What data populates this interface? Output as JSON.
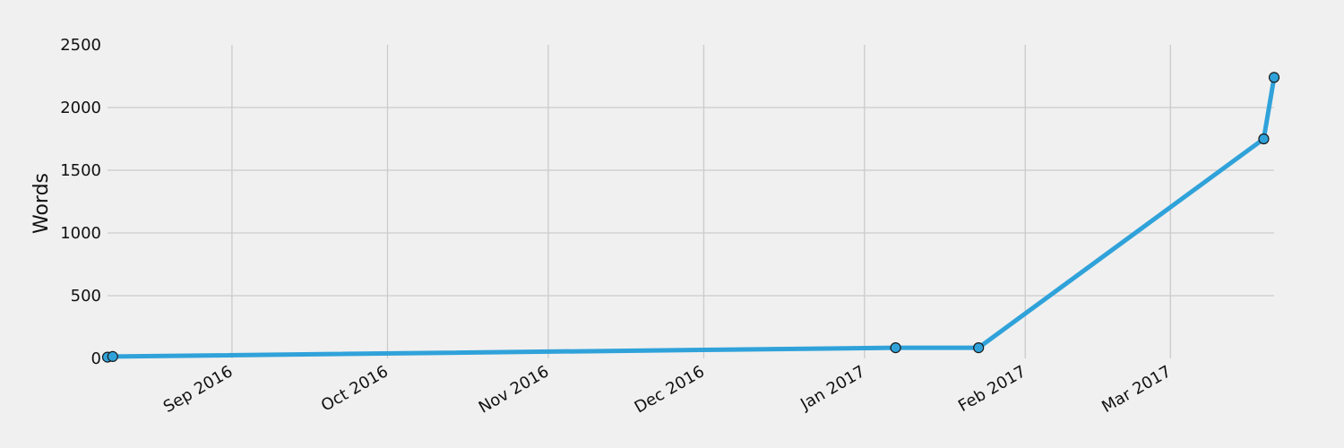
{
  "chart_data": {
    "type": "line",
    "title": "",
    "xlabel": "",
    "ylabel": "Words",
    "grid": true,
    "legend": "none",
    "xlim": [
      "2016-08-08",
      "2017-03-21"
    ],
    "ylim": [
      0,
      2500
    ],
    "yticks": [
      0,
      500,
      1000,
      1500,
      2000,
      2500
    ],
    "xticks": [
      {
        "date": "2016-09-01",
        "label": "Sep 2016"
      },
      {
        "date": "2016-10-01",
        "label": "Oct 2016"
      },
      {
        "date": "2016-11-01",
        "label": "Nov 2016"
      },
      {
        "date": "2016-12-01",
        "label": "Dec 2016"
      },
      {
        "date": "2017-01-01",
        "label": "Jan 2017"
      },
      {
        "date": "2017-02-01",
        "label": "Feb 2017"
      },
      {
        "date": "2017-03-01",
        "label": "Mar 2017"
      }
    ],
    "series": [
      {
        "color": "#30a2da",
        "points": [
          {
            "x": "2016-08-08",
            "y": 10
          },
          {
            "x": "2016-08-09",
            "y": 15
          },
          {
            "x": "2017-01-07",
            "y": 85
          },
          {
            "x": "2017-01-23",
            "y": 85
          },
          {
            "x": "2017-03-19",
            "y": 1750
          },
          {
            "x": "2017-03-21",
            "y": 2240
          }
        ]
      }
    ]
  }
}
